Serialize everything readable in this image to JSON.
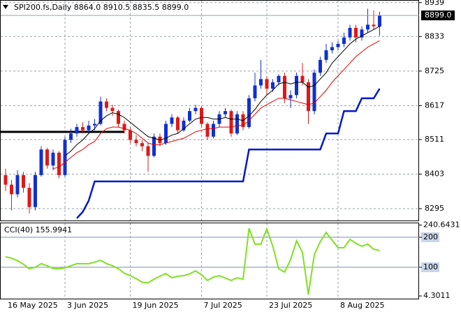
{
  "chart_data": [
    {
      "type": "candlestick",
      "title": "SPI200.fs,Daily  8864.0 8910.5 8835.5 8899.0",
      "categories": [
        "16 May 2025",
        null,
        null,
        null,
        null,
        null,
        null,
        null,
        null,
        null,
        "3 Jun 2025",
        null,
        null,
        null,
        null,
        null,
        null,
        null,
        null,
        null,
        null,
        "19 Jun 2025",
        null,
        null,
        null,
        null,
        null,
        null,
        null,
        null,
        null,
        null,
        null,
        "7 Jul 2025",
        null,
        null,
        null,
        null,
        null,
        null,
        null,
        null,
        null,
        null,
        "23 Jul 2025",
        null,
        null,
        null,
        null,
        null,
        null,
        null,
        null,
        null,
        null,
        null,
        "8 Aug 2025",
        null,
        null,
        null,
        null,
        null,
        null,
        null
      ],
      "open": [
        8400,
        8370,
        8340,
        8400,
        8360,
        8300,
        8400,
        8480,
        8430,
        8470,
        8400,
        8510,
        8530,
        8550,
        8540,
        8555,
        8560,
        8630,
        8610,
        8600,
        8560,
        8540,
        8510,
        8500,
        8490,
        8460,
        8520,
        8500,
        8560,
        8580,
        8540,
        8570,
        8600,
        8610,
        8560,
        8520,
        8560,
        8590,
        8600,
        8530,
        8590,
        8550,
        8640,
        8680,
        8700,
        8670,
        8690,
        8710,
        8640,
        8650,
        8710,
        8690,
        8600,
        8720,
        8760,
        8790,
        8800,
        8810,
        8830,
        8860,
        8830,
        8855,
        8870,
        8864
      ],
      "high": [
        8420,
        8385,
        8415,
        8410,
        8375,
        8410,
        8490,
        8485,
        8480,
        8475,
        8520,
        8545,
        8560,
        8565,
        8570,
        8575,
        8645,
        8640,
        8620,
        8605,
        8570,
        8550,
        8525,
        8510,
        8500,
        8530,
        8530,
        8570,
        8590,
        8585,
        8580,
        8610,
        8620,
        8615,
        8565,
        8570,
        8600,
        8610,
        8605,
        8600,
        8600,
        8650,
        8720,
        8760,
        8710,
        8700,
        8715,
        8720,
        8665,
        8720,
        8750,
        8700,
        8730,
        8770,
        8810,
        8815,
        8820,
        8845,
        8870,
        8870,
        8865,
        8920,
        8915,
        8910.5
      ],
      "low": [
        8350,
        8290,
        8330,
        8345,
        8280,
        8290,
        8395,
        8420,
        8415,
        8390,
        8395,
        8500,
        8520,
        8530,
        8530,
        8540,
        8555,
        8600,
        8585,
        8550,
        8530,
        8500,
        8490,
        8475,
        8410,
        8455,
        8490,
        8495,
        8550,
        8530,
        8535,
        8565,
        8590,
        8550,
        8510,
        8515,
        8550,
        8580,
        8520,
        8525,
        8540,
        8545,
        8630,
        8670,
        8650,
        8660,
        8680,
        8625,
        8610,
        8640,
        8680,
        8560,
        8590,
        8710,
        8750,
        8780,
        8790,
        8800,
        8820,
        8815,
        8820,
        8845,
        8855,
        8835.5
      ],
      "close": [
        8370,
        8340,
        8400,
        8360,
        8300,
        8400,
        8480,
        8430,
        8470,
        8400,
        8510,
        8530,
        8550,
        8540,
        8555,
        8560,
        8630,
        8610,
        8600,
        8560,
        8540,
        8510,
        8500,
        8490,
        8460,
        8520,
        8500,
        8560,
        8580,
        8540,
        8570,
        8600,
        8610,
        8560,
        8520,
        8560,
        8590,
        8600,
        8530,
        8590,
        8550,
        8640,
        8680,
        8700,
        8670,
        8690,
        8710,
        8640,
        8650,
        8710,
        8690,
        8600,
        8720,
        8760,
        8790,
        8800,
        8810,
        8830,
        8860,
        8830,
        8855,
        8870,
        8865,
        8899
      ],
      "up_color": "#1030d0",
      "down_color": "#e01818",
      "overlays": [
        {
          "color": "#000000",
          "width": 1,
          "values": [
            null,
            null,
            null,
            null,
            null,
            null,
            null,
            null,
            null,
            null,
            8460,
            8475,
            8495,
            8510,
            8530,
            8545,
            8570,
            8585,
            8595,
            8590,
            8580,
            8565,
            8550,
            8535,
            8520,
            8515,
            8510,
            8515,
            8525,
            8530,
            8545,
            8560,
            8575,
            8580,
            8580,
            8575,
            8575,
            8580,
            8575,
            8575,
            8570,
            8585,
            8605,
            8630,
            8650,
            8665,
            8685,
            8690,
            8685,
            8690,
            8690,
            8675,
            8680,
            8700,
            8720,
            8750,
            8770,
            8790,
            8810,
            8825,
            8835,
            8845,
            8855,
            8865
          ]
        },
        {
          "color": "#e00000",
          "width": 1,
          "values": [
            null,
            null,
            null,
            null,
            null,
            null,
            null,
            null,
            8420,
            8425,
            8440,
            8455,
            8470,
            8480,
            8495,
            8505,
            8530,
            8545,
            8550,
            8550,
            8545,
            8540,
            8530,
            8515,
            8500,
            8495,
            8495,
            8500,
            8505,
            8510,
            8515,
            8525,
            8535,
            8540,
            8545,
            8545,
            8550,
            8550,
            8550,
            8555,
            8555,
            8570,
            8590,
            8610,
            8620,
            8630,
            8640,
            8640,
            8635,
            8630,
            8625,
            8620,
            8625,
            8645,
            8665,
            8690,
            8710,
            8730,
            8750,
            8770,
            8785,
            8800,
            8810,
            8820
          ]
        },
        {
          "color": "#0018c8",
          "width": 2.5,
          "values": [
            null,
            null,
            null,
            null,
            null,
            null,
            null,
            null,
            null,
            null,
            null,
            null,
            8265,
            8285,
            8320,
            8380,
            8380,
            8380,
            8380,
            8380,
            8380,
            8380,
            8380,
            8380,
            8380,
            8380,
            8380,
            8380,
            8380,
            8380,
            8380,
            8380,
            8380,
            8380,
            8380,
            8380,
            8380,
            8380,
            8380,
            8380,
            8380,
            8480,
            8480,
            8480,
            8480,
            8480,
            8480,
            8480,
            8480,
            8480,
            8480,
            8480,
            8480,
            8480,
            8530,
            8530,
            8530,
            8600,
            8600,
            8600,
            8640,
            8640,
            8640,
            8670
          ]
        }
      ],
      "level": 8535,
      "level_color": "#000000",
      "last_label": "8899.0",
      "ylim": [
        8258,
        8945
      ],
      "yticks": [
        8939,
        8833,
        8725,
        8617,
        8511,
        8403,
        8295
      ],
      "grid": true
    },
    {
      "type": "line",
      "title": "CCI(40) 155.9941",
      "series": [
        {
          "color": "#80e020",
          "values": [
            135,
            130,
            122,
            110,
            95,
            100,
            112,
            105,
            96,
            95,
            98,
            105,
            112,
            112,
            112,
            117,
            123,
            112,
            105,
            95,
            80,
            72,
            62,
            50,
            48,
            60,
            70,
            79,
            65,
            70,
            72,
            78,
            88,
            75,
            56,
            67,
            72,
            64,
            56,
            65,
            60,
            230,
            177,
            177,
            228,
            170,
            95,
            84,
            125,
            188,
            150,
            9,
            142,
            185,
            216,
            190,
            165,
            165,
            193,
            180,
            170,
            177,
            160,
            155.9941
          ]
        }
      ],
      "levels": [
        200,
        100
      ],
      "level_color": "#7a8fa8",
      "ylim": [
        -4.7,
        246.5
      ],
      "yticks": [
        240.6431,
        200,
        100,
        4.3011
      ]
    }
  ]
}
